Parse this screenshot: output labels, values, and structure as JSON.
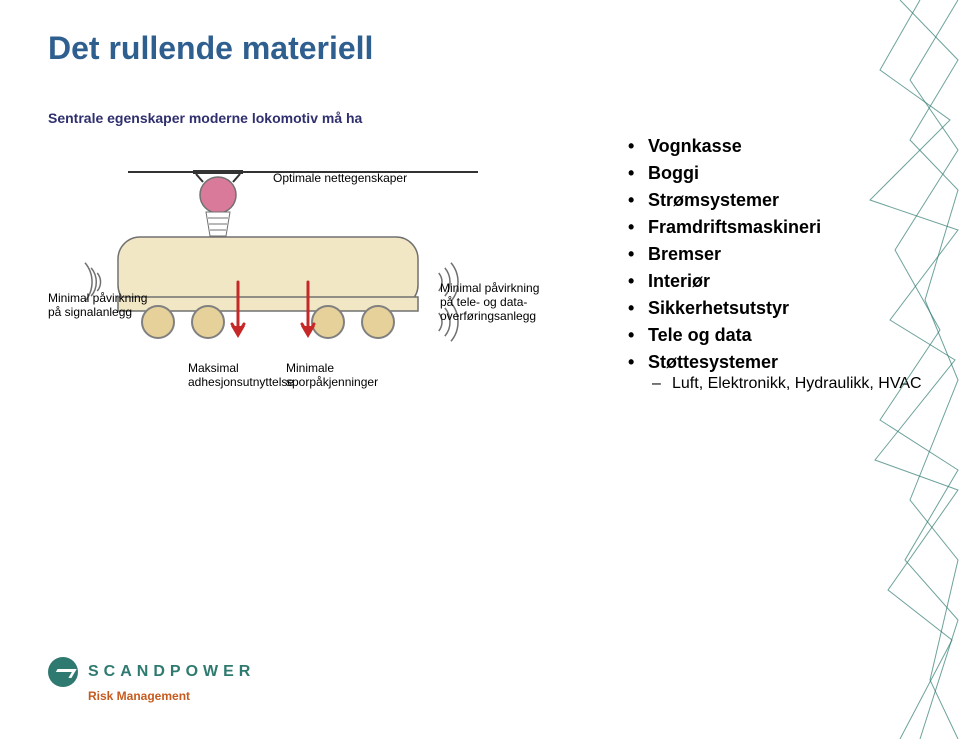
{
  "title": "Det rullende materiell",
  "diagram": {
    "heading": "Sentrale egenskaper moderne lokomotiv må ha",
    "labels": {
      "top": "Optimale nettegenskaper",
      "left": "Minimal påvirkning\npå signalanlegg",
      "bottom1": "Maksimal\nadhesjonsutnyttelse",
      "bottom2": "Minimale\nsporpåkjenninger",
      "right": "Minimal påvirkning\npå tele- og data-\noverføringsanlegg"
    },
    "colors": {
      "body_fill": "#f2e7c4",
      "body_stroke": "#707070",
      "wheel_fill": "#e7d19a",
      "wheel_stroke": "#808080",
      "panto_fill": "#d97a9a",
      "panto_stroke": "#707070",
      "wave_stroke": "#707070",
      "arrow_fill": "#c62828",
      "wire_color": "#333333",
      "text_color": "#000000",
      "heading_color": "#2f2f6f"
    },
    "font_sizes": {
      "heading": 14,
      "labels": 12
    }
  },
  "bullets": [
    {
      "label": "Vognkasse"
    },
    {
      "label": "Boggi"
    },
    {
      "label": "Strømsystemer"
    },
    {
      "label": "Framdriftsmaskineri"
    },
    {
      "label": "Bremser"
    },
    {
      "label": "Interiør"
    },
    {
      "label": "Sikkerhetsutstyr"
    },
    {
      "label": "Tele og data"
    },
    {
      "label": "Støttesystemer",
      "sub": [
        "Luft, Elektronikk, Hydraulikk, HVAC"
      ]
    }
  ],
  "logo": {
    "name": "SCANDPOWER",
    "sub": "Risk Management",
    "mark_color": "#2f7a70",
    "sub_color": "#c65b1f"
  },
  "decoration": {
    "line_color": "#2f7a70",
    "background": "#ffffff"
  }
}
